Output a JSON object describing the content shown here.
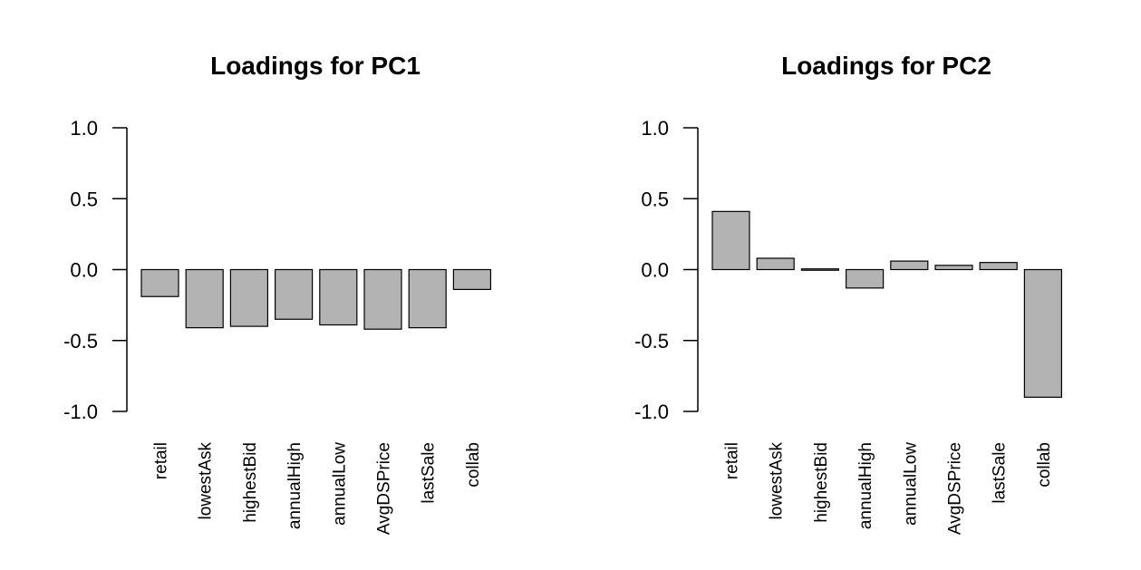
{
  "chart_data": [
    {
      "type": "bar",
      "title": "Loadings for PC1",
      "categories": [
        "retail",
        "lowestAsk",
        "highestBid",
        "annualHigh",
        "annualLow",
        "AvgDSPrice",
        "lastSale",
        "collab"
      ],
      "values": [
        -0.19,
        -0.41,
        -0.4,
        -0.35,
        -0.39,
        -0.42,
        -0.41,
        -0.14
      ],
      "ylim": [
        -1.0,
        1.0
      ],
      "yticks": [
        "-1.0",
        "-0.5",
        "0.0",
        "0.5",
        "1.0"
      ],
      "bar_color": "#b3b3b3"
    },
    {
      "type": "bar",
      "title": "Loadings for PC2",
      "categories": [
        "retail",
        "lowestAsk",
        "highestBid",
        "annualHigh",
        "annualLow",
        "AvgDSPrice",
        "lastSale",
        "collab"
      ],
      "values": [
        0.41,
        0.08,
        0.005,
        -0.13,
        0.06,
        0.03,
        0.05,
        -0.9
      ],
      "ylim": [
        -1.0,
        1.0
      ],
      "yticks": [
        "-1.0",
        "-0.5",
        "0.0",
        "0.5",
        "1.0"
      ],
      "bar_color": "#b3b3b3"
    }
  ]
}
